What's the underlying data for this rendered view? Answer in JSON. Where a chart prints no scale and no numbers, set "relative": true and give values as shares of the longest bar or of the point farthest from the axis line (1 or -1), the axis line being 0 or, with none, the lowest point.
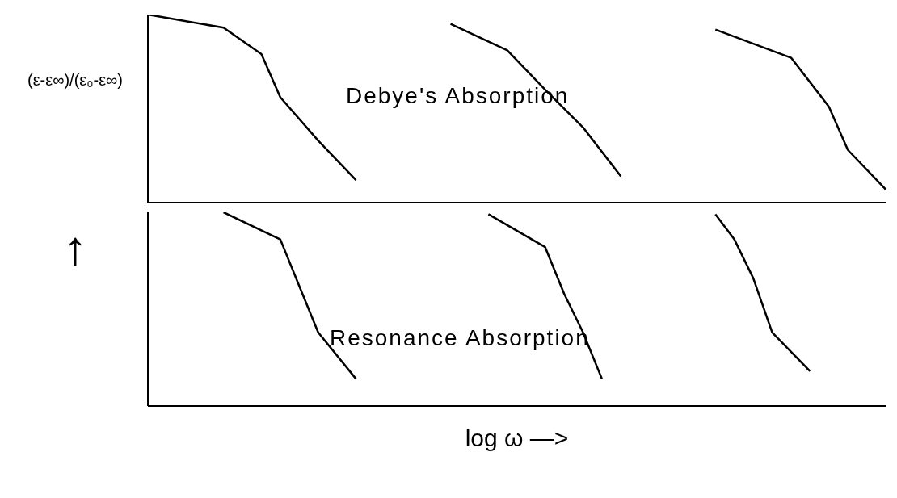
{
  "chart_data": [
    {
      "type": "line",
      "relative": true,
      "ylabel": "(ε-ε∞)/(ε₀-ε∞)",
      "annotations": [
        "Debye's Absorption"
      ],
      "categories": [
        null,
        null,
        null,
        null,
        null,
        null,
        null,
        null,
        null,
        null,
        null,
        null,
        null,
        null,
        null,
        null,
        null,
        null,
        null,
        null,
        null,
        null,
        null,
        null,
        null,
        null,
        null,
        null,
        null,
        null,
        null,
        null,
        null,
        null,
        null,
        null,
        null,
        null,
        null,
        null
      ],
      "marker": "none",
      "line_style": "solid",
      "series": [
        {
          "color": "#000000",
          "values": [
            1.0,
            null,
            null,
            null,
            0.93,
            null,
            0.79,
            0.56,
            null,
            0.33,
            null,
            0.12,
            null,
            null,
            null,
            null,
            null,
            null,
            null,
            null,
            null,
            null,
            null,
            null,
            null,
            null,
            null,
            null,
            null,
            null,
            null,
            null,
            null,
            null,
            null,
            null,
            null,
            null,
            null,
            null
          ]
        },
        {
          "color": "#000000",
          "values": [
            null,
            null,
            null,
            null,
            null,
            null,
            null,
            null,
            null,
            null,
            null,
            null,
            null,
            null,
            null,
            null,
            0.95,
            null,
            null,
            0.81,
            null,
            0.6,
            null,
            0.4,
            null,
            0.14,
            null,
            null,
            null,
            null,
            null,
            null,
            null,
            null,
            null,
            null,
            null,
            null,
            null,
            null
          ]
        },
        {
          "color": "#000000",
          "values": [
            null,
            null,
            null,
            null,
            null,
            null,
            null,
            null,
            null,
            null,
            null,
            null,
            null,
            null,
            null,
            null,
            null,
            null,
            null,
            null,
            null,
            null,
            null,
            null,
            null,
            null,
            null,
            null,
            null,
            null,
            0.92,
            null,
            null,
            null,
            0.77,
            null,
            0.51,
            0.28,
            null,
            0.07
          ]
        }
      ]
    },
    {
      "type": "line",
      "relative": true,
      "ylabel": "↑",
      "xlabel": "log ω —>",
      "annotations": [
        "Resonance Absorption"
      ],
      "categories": [
        null,
        null,
        null,
        null,
        null,
        null,
        null,
        null,
        null,
        null,
        null,
        null,
        null,
        null,
        null,
        null,
        null,
        null,
        null,
        null,
        null,
        null,
        null,
        null,
        null,
        null,
        null,
        null,
        null,
        null,
        null,
        null,
        null,
        null,
        null,
        null,
        null,
        null,
        null,
        null
      ],
      "marker": "none",
      "line_style": "solid",
      "series": [
        {
          "color": "#000000",
          "values": [
            null,
            null,
            null,
            null,
            1.0,
            null,
            null,
            0.86,
            0.62,
            0.38,
            null,
            0.14,
            null,
            null,
            null,
            null,
            null,
            null,
            null,
            null,
            null,
            null,
            null,
            null,
            null,
            null,
            null,
            null,
            null,
            null,
            null,
            null,
            null,
            null,
            null,
            null,
            null,
            null,
            null,
            null
          ]
        },
        {
          "color": "#000000",
          "values": [
            null,
            null,
            null,
            null,
            null,
            null,
            null,
            null,
            null,
            null,
            null,
            null,
            null,
            null,
            null,
            null,
            null,
            null,
            0.99,
            null,
            null,
            0.82,
            0.58,
            0.38,
            0.14,
            null,
            null,
            null,
            null,
            null,
            null,
            null,
            null,
            null,
            null,
            null,
            null,
            null,
            null,
            null
          ]
        },
        {
          "color": "#000000",
          "values": [
            null,
            null,
            null,
            null,
            null,
            null,
            null,
            null,
            null,
            null,
            null,
            null,
            null,
            null,
            null,
            null,
            null,
            null,
            null,
            null,
            null,
            null,
            null,
            null,
            null,
            null,
            null,
            null,
            null,
            null,
            0.99,
            0.86,
            0.66,
            0.38,
            null,
            0.18,
            null,
            null,
            null,
            null
          ]
        }
      ]
    }
  ]
}
